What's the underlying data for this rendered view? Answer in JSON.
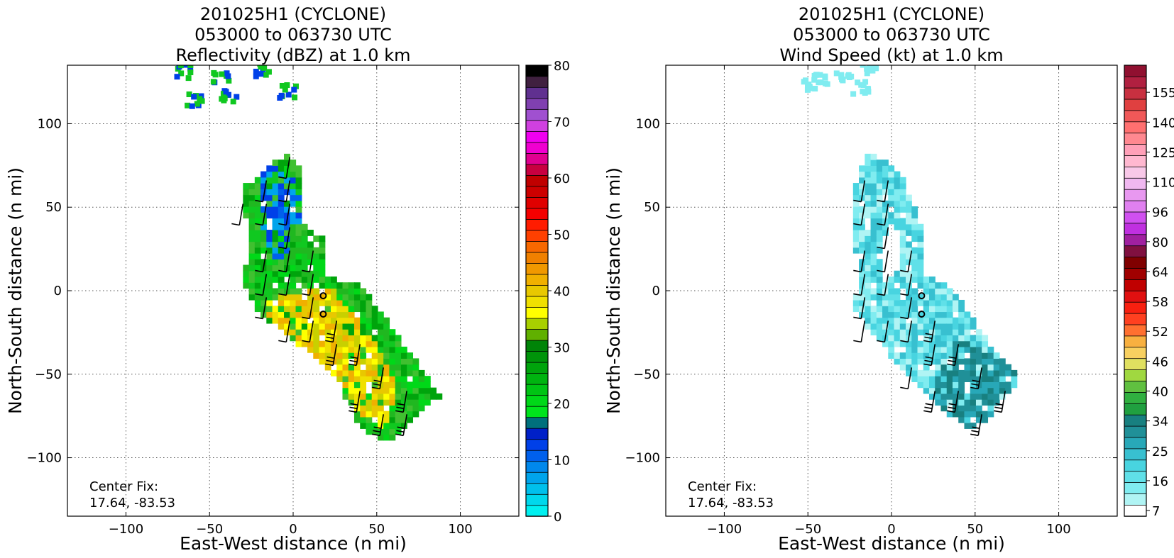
{
  "chart_data": [
    {
      "type": "heatmap",
      "title": [
        "201025H1 (CYCLONE)",
        "053000 to 063730 UTC",
        "Reflectivity (dBZ) at 1.0 km"
      ],
      "xlabel": "East-West distance (n mi)",
      "ylabel": "North-South distance (n mi)",
      "xlim": [
        -135,
        135
      ],
      "ylim": [
        -135,
        135
      ],
      "xticks": [
        -100,
        -50,
        0,
        50,
        100
      ],
      "yticks": [
        -100,
        -50,
        0,
        50,
        100
      ],
      "grid": true,
      "annotation": [
        "Center Fix:",
        "17.64, -83.53"
      ],
      "center_markers": [
        [
          18,
          -3
        ],
        [
          18,
          -14
        ]
      ],
      "colorbar": {
        "ticks": [
          0,
          10,
          20,
          30,
          40,
          50,
          60,
          70,
          80
        ],
        "colors": [
          "#00f0f0",
          "#00d8ec",
          "#00c0ec",
          "#00a4ec",
          "#0088ec",
          "#0060ec",
          "#0040e8",
          "#0020c8",
          "#00707c",
          "#00e41c",
          "#00d818",
          "#00c414",
          "#00b410",
          "#00a40c",
          "#00940a",
          "#008408",
          "#60b000",
          "#a8d000",
          "#ffff00",
          "#f0e000",
          "#e8c800",
          "#f0b000",
          "#f09800",
          "#f08000",
          "#f86800",
          "#ff4000",
          "#ff1c00",
          "#f40000",
          "#e00000",
          "#cc0000",
          "#c00000",
          "#c80040",
          "#e00090",
          "#f000d0",
          "#f000f0",
          "#d040e0",
          "#a050d0",
          "#8040b0",
          "#603090",
          "#402040",
          "#000000"
        ]
      },
      "data_description": "Reflectivity echoes along NW-SE band; highest values (~35-45 dBZ) south-east of center",
      "region_polygon": [
        [
          -2,
          83
        ],
        [
          5,
          72
        ],
        [
          5,
          40
        ],
        [
          18,
          32
        ],
        [
          18,
          8
        ],
        [
          40,
          5
        ],
        [
          88,
          -63
        ],
        [
          57,
          -90
        ],
        [
          40,
          -82
        ],
        [
          25,
          -50
        ],
        [
          -22,
          -12
        ],
        [
          -30,
          5
        ],
        [
          -26,
          30
        ],
        [
          -32,
          62
        ],
        [
          -18,
          72
        ]
      ],
      "region_top_cells": [
        [
          -68,
          133
        ],
        [
          -45,
          130
        ],
        [
          -20,
          134
        ],
        [
          -5,
          121
        ],
        [
          -40,
          118
        ],
        [
          -60,
          116
        ]
      ],
      "core_polygon": [
        [
          22,
          3
        ],
        [
          48,
          -30
        ],
        [
          62,
          -58
        ],
        [
          55,
          -82
        ],
        [
          40,
          -76
        ],
        [
          25,
          -50
        ],
        [
          -12,
          -28
        ],
        [
          -16,
          -5
        ]
      ],
      "blue_polygon": [
        [
          -20,
          77
        ],
        [
          3,
          70
        ],
        [
          4,
          40
        ],
        [
          -2,
          26
        ],
        [
          -8,
          15
        ],
        [
          -18,
          30
        ],
        [
          -19,
          55
        ]
      ]
    },
    {
      "type": "heatmap",
      "title": [
        "201025H1 (CYCLONE)",
        "053000 to 063730 UTC",
        "Wind Speed (kt) at 1.0 km"
      ],
      "xlabel": "East-West distance (n mi)",
      "ylabel": "North-South distance (n mi)",
      "xlim": [
        -135,
        135
      ],
      "ylim": [
        -135,
        135
      ],
      "xticks": [
        -100,
        -50,
        0,
        50,
        100
      ],
      "yticks": [
        -100,
        -50,
        0,
        50,
        100
      ],
      "grid": true,
      "annotation": [
        "Center Fix:",
        "17.64, -83.53"
      ],
      "center_markers": [
        [
          18,
          -3
        ],
        [
          18,
          -14
        ]
      ],
      "colorbar": {
        "ticks": [
          "7",
          "16",
          "25",
          "34",
          "40",
          "46",
          "52",
          "58",
          "64",
          "80",
          "96",
          "110",
          "125",
          "140",
          "155"
        ],
        "colors": [
          "#ffffff",
          "#b0f4f4",
          "#80ecf0",
          "#60e0e8",
          "#48d4e0",
          "#38c0d0",
          "#28a8b8",
          "#209098",
          "#188080",
          "#20a040",
          "#30b040",
          "#60c040",
          "#a0d840",
          "#e0e060",
          "#f8d060",
          "#f8b040",
          "#ff7030",
          "#ff4020",
          "#f82010",
          "#e01010",
          "#c00000",
          "#a00000",
          "#800000",
          "#801040",
          "#a020a0",
          "#c030e0",
          "#d050f0",
          "#e080f0",
          "#e898f0",
          "#f0b8f0",
          "#f8c8e8",
          "#ffb8d0",
          "#ffa0b8",
          "#ff8890",
          "#ff7070",
          "#f05858",
          "#e04040",
          "#c83040",
          "#b02040",
          "#901030"
        ]
      },
      "data_description": "Wind speeds mostly 16-34 kt; strongest (~25-34 kt) south-east of center",
      "region_polygon": [
        [
          -14,
          84
        ],
        [
          5,
          72
        ],
        [
          18,
          40
        ],
        [
          18,
          20
        ],
        [
          20,
          10
        ],
        [
          35,
          3
        ],
        [
          65,
          -40
        ],
        [
          77,
          -52
        ],
        [
          55,
          -80
        ],
        [
          45,
          -82
        ],
        [
          28,
          -70
        ],
        [
          0,
          -40
        ],
        [
          -22,
          -12
        ],
        [
          -20,
          15
        ],
        [
          -24,
          40
        ],
        [
          -22,
          62
        ]
      ],
      "region_top_cells": [
        [
          -45,
          129
        ],
        [
          -30,
          131
        ],
        [
          -15,
          134
        ],
        [
          -20,
          123
        ],
        [
          -50,
          124
        ]
      ],
      "core_polygon": [
        [
          40,
          -28
        ],
        [
          65,
          -40
        ],
        [
          77,
          -52
        ],
        [
          55,
          -80
        ],
        [
          45,
          -82
        ],
        [
          28,
          -70
        ],
        [
          25,
          -55
        ]
      ],
      "hole_polygon": [
        [
          -2,
          40
        ],
        [
          4,
          38
        ],
        [
          6,
          15
        ],
        [
          -2,
          5
        ],
        [
          -8,
          20
        ]
      ]
    }
  ]
}
